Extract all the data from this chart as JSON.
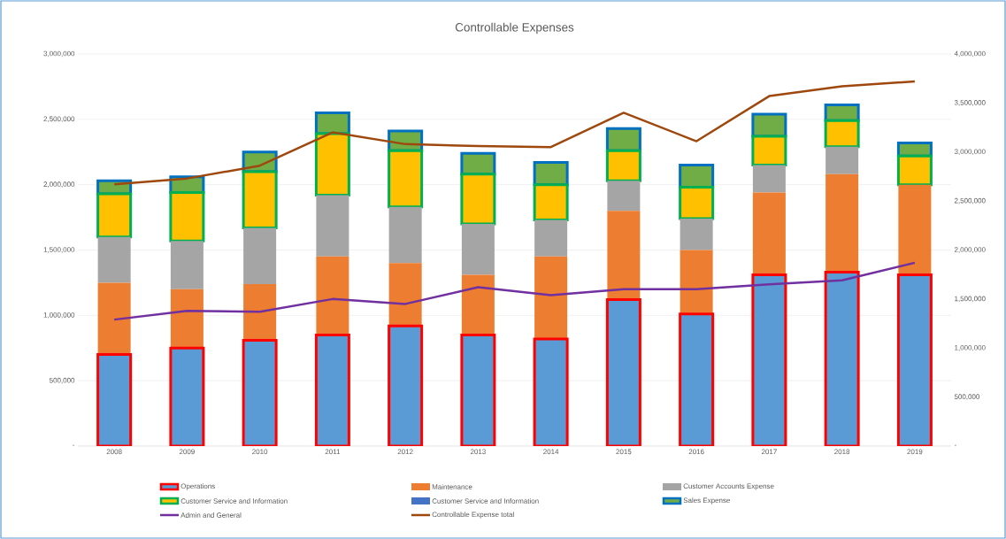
{
  "chart_data": {
    "type": "bar",
    "stacked": true,
    "title": "Controllable Expenses",
    "categories": [
      "2008",
      "2009",
      "2010",
      "2011",
      "2012",
      "2013",
      "2014",
      "2015",
      "2016",
      "2017",
      "2018",
      "2019"
    ],
    "series": [
      {
        "name": "Operations",
        "color": "#5b9bd5",
        "values": [
          700000,
          750000,
          810000,
          850000,
          920000,
          850000,
          820000,
          1120000,
          1010000,
          1310000,
          1330000,
          1310000
        ]
      },
      {
        "name": "Maintenance",
        "color": "#ed7d31",
        "values": [
          550000,
          450000,
          430000,
          600000,
          480000,
          460000,
          630000,
          680000,
          490000,
          630000,
          750000,
          690000
        ]
      },
      {
        "name": "Customer Accounts Expense",
        "color": "#a5a5a5",
        "values": [
          350000,
          370000,
          430000,
          470000,
          430000,
          390000,
          280000,
          230000,
          240000,
          210000,
          210000,
          0
        ]
      },
      {
        "name": "Customer Service and Information",
        "color": "#ffc000",
        "values": [
          330000,
          370000,
          430000,
          470000,
          430000,
          380000,
          270000,
          230000,
          240000,
          220000,
          200000,
          220000
        ]
      },
      {
        "name": "Customer Service and Information",
        "color": "#4472c4",
        "values": [
          null,
          null,
          null,
          null,
          null,
          null,
          null,
          null,
          null,
          null,
          null,
          null
        ]
      },
      {
        "name": "Sales Expense",
        "color": "#70ad47",
        "values": [
          100000,
          120000,
          150000,
          160000,
          150000,
          160000,
          170000,
          170000,
          170000,
          170000,
          120000,
          100000
        ]
      },
      {
        "name": "Admin and General",
        "type": "line",
        "axis": "y2",
        "color": "#7030a0",
        "values": [
          1290000,
          1380000,
          1370000,
          1500000,
          1450000,
          1620000,
          1540000,
          1600000,
          1600000,
          1650000,
          1690000,
          1870000
        ]
      },
      {
        "name": "Controllable Expense total",
        "type": "line",
        "axis": "y2",
        "color": "#9e480e",
        "values": [
          2670000,
          2730000,
          2860000,
          3200000,
          3080000,
          3060000,
          3050000,
          3400000,
          3110000,
          3570000,
          3670000,
          3720000
        ]
      }
    ],
    "ylim": [
      0,
      3000000
    ],
    "yticks": [
      {
        "value": 0,
        "label": "-"
      },
      {
        "value": 500000,
        "label": "500,000"
      },
      {
        "value": 1000000,
        "label": "1,000,000"
      },
      {
        "value": 1500000,
        "label": "1,500,000"
      },
      {
        "value": 2000000,
        "label": "2,000,000"
      },
      {
        "value": 2500000,
        "label": "2,500,000"
      },
      {
        "value": 3000000,
        "label": "3,000,000"
      }
    ],
    "y2lim": [
      0,
      4000000
    ],
    "y2ticks": [
      {
        "value": 0,
        "label": "-"
      },
      {
        "value": 500000,
        "label": "500,000"
      },
      {
        "value": 1000000,
        "label": "1,000,000"
      },
      {
        "value": 1500000,
        "label": "1,500,000"
      },
      {
        "value": 2000000,
        "label": "2,000,000"
      },
      {
        "value": 2500000,
        "label": "2,500,000"
      },
      {
        "value": 3000000,
        "label": "3,000,000"
      },
      {
        "value": 3500000,
        "label": "3,500,000"
      },
      {
        "value": 4000000,
        "label": "4,000,000"
      }
    ],
    "grid": "y",
    "legend": "bottom",
    "marker": "none",
    "line_style": "solid"
  }
}
